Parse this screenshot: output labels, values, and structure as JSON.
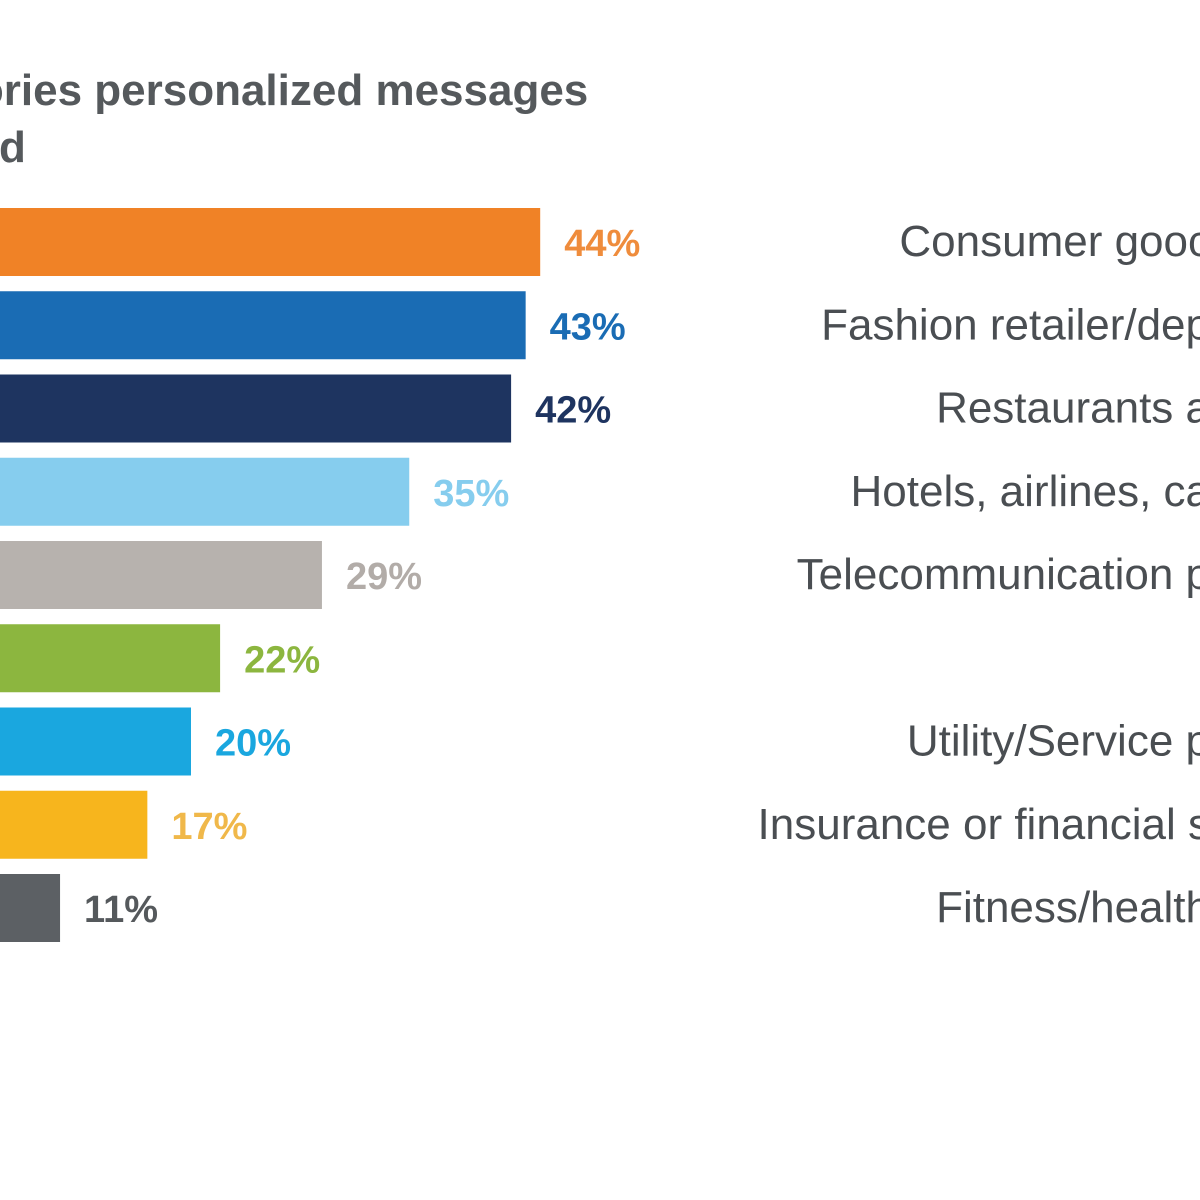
{
  "chart_data": {
    "type": "bar",
    "orientation": "horizontal",
    "title_lines": [
      "gories personalized messages",
      "ved"
    ],
    "categories": [
      "Consumer gooc",
      "Fashion retailer/dep",
      "Restaurants a",
      "Hotels, airlines, ca",
      "Telecommunication p",
      "",
      "Utility/Service p",
      "Insurance or financial s",
      "Fitness/health"
    ],
    "values": [
      44,
      43,
      42,
      35,
      29,
      22,
      20,
      17,
      11
    ],
    "value_labels": [
      "44%",
      "43%",
      "42%",
      "35%",
      "29%",
      "22%",
      "20%",
      "17%",
      "11%"
    ],
    "colors": [
      "#f08226",
      "#1a6cb4",
      "#1e3460",
      "#86cdee",
      "#b7b2ae",
      "#8cb63f",
      "#1aa7df",
      "#f7b51d",
      "#5c6064"
    ],
    "label_colors": [
      "#ef8c3c",
      "#1a6cb4",
      "#1e3460",
      "#86cdee",
      "#b2aca8",
      "#8cb63f",
      "#1aa7df",
      "#f0b84a",
      "#55595c"
    ],
    "grid": false,
    "legend": "none"
  }
}
